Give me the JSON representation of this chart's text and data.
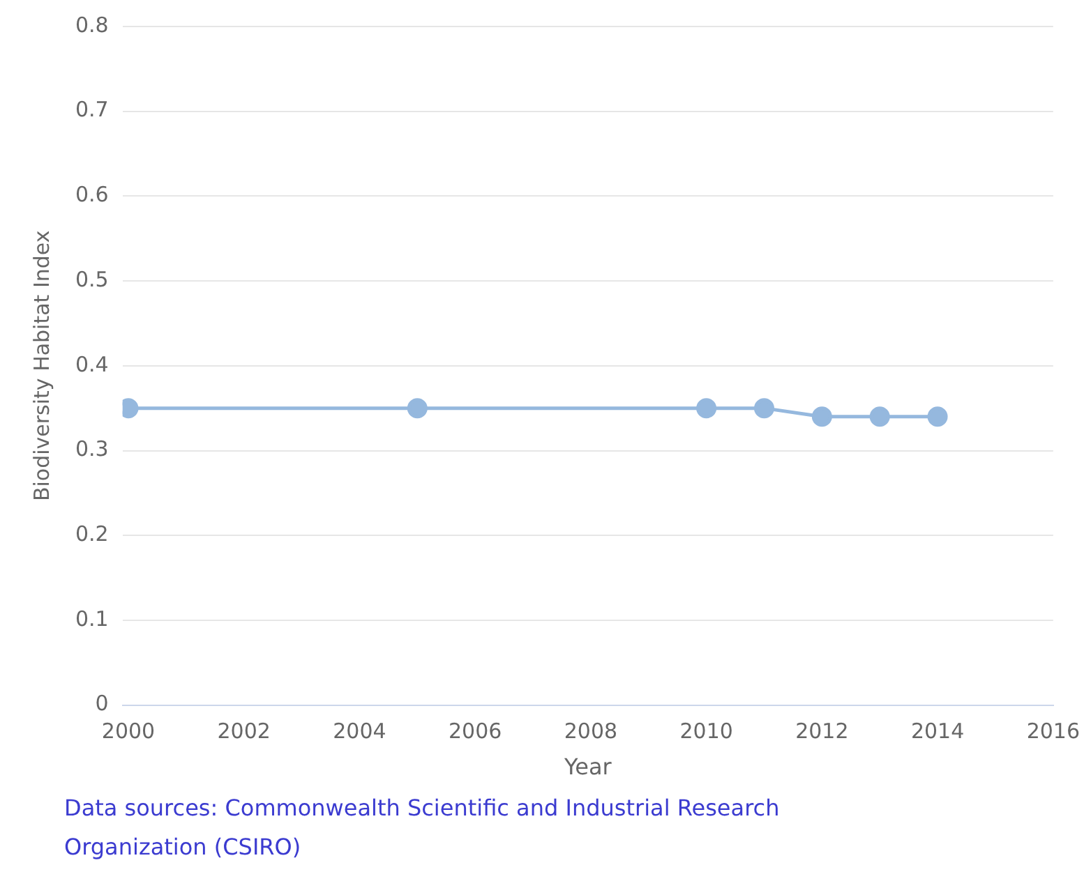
{
  "chart_data": {
    "type": "line",
    "xlabel": "Year",
    "ylabel": "Biodiversity Habitat Index",
    "x": [
      2000,
      2005,
      2010,
      2011,
      2012,
      2013,
      2014
    ],
    "series": [
      {
        "color": "#95b8de",
        "values": [
          0.35,
          0.35,
          0.35,
          0.35,
          0.34,
          0.34,
          0.34
        ]
      }
    ],
    "xlim": [
      1999.9,
      2016
    ],
    "xticks": [
      2000,
      2002,
      2004,
      2006,
      2008,
      2010,
      2012,
      2014,
      2016
    ],
    "ylim": [
      0,
      0.8
    ],
    "yticks": [
      0,
      0.1,
      0.2,
      0.3,
      0.4,
      0.5,
      0.6,
      0.7,
      0.8
    ],
    "grid": "y",
    "legend": false,
    "marker": "circle",
    "line_style": "solid",
    "annotations": [
      "Data sources: Commonwealth Scientific and Industrial Research Organization (CSIRO)"
    ]
  }
}
